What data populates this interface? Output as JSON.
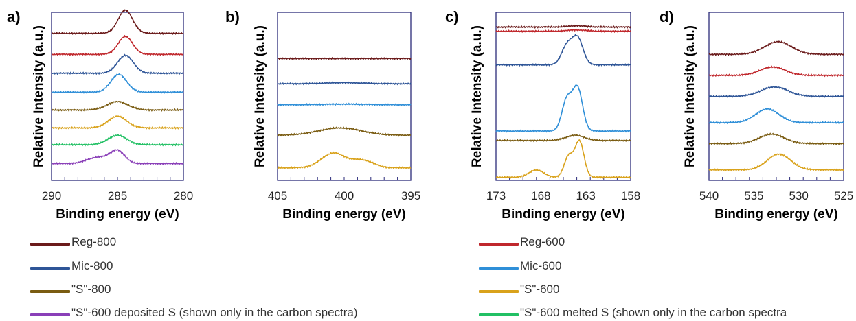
{
  "chart_data": [
    {
      "type": "line",
      "panel_letter": "a)",
      "xlabel": "Binding energy (eV)",
      "ylabel": "Relative Intensity (a.u.)",
      "xlim": [
        290,
        280
      ],
      "x_ticks": [
        290,
        285,
        280
      ],
      "series": [
        {
          "name": "Reg-800",
          "color": "#6b1b1b",
          "baseline": 7.0,
          "peaks": [
            {
              "center": 284.4,
              "height": 1.1,
              "width": 0.55
            }
          ]
        },
        {
          "name": "Reg-600",
          "color": "#c0282d",
          "baseline": 6.0,
          "peaks": [
            {
              "center": 284.4,
              "height": 0.85,
              "width": 0.55
            }
          ]
        },
        {
          "name": "Mic-800",
          "color": "#2e5597",
          "baseline": 5.1,
          "peaks": [
            {
              "center": 284.4,
              "height": 0.85,
              "width": 0.6
            }
          ]
        },
        {
          "name": "Mic-600",
          "color": "#2f8fd8",
          "baseline": 4.2,
          "peaks": [
            {
              "center": 284.9,
              "height": 0.85,
              "width": 0.6
            }
          ]
        },
        {
          "name": "\"S\"-800",
          "color": "#7a5c12",
          "baseline": 3.35,
          "peaks": [
            {
              "center": 285.0,
              "height": 0.4,
              "width": 0.8
            }
          ]
        },
        {
          "name": "\"S\"-600",
          "color": "#d9a21b",
          "baseline": 2.5,
          "peaks": [
            {
              "center": 285.0,
              "height": 0.55,
              "width": 0.7
            }
          ]
        },
        {
          "name": "\"S\"-600 melted S (shown only in the carbon spectra)",
          "color": "#22c064",
          "baseline": 1.7,
          "peaks": [
            {
              "center": 285.0,
              "height": 0.45,
              "width": 0.7
            }
          ]
        },
        {
          "name": "\"S\"-600 deposited S (shown only in the carbon spectra)",
          "color": "#8a3fb8",
          "baseline": 0.8,
          "peaks": [
            {
              "center": 285.0,
              "height": 0.6,
              "width": 0.55
            },
            {
              "center": 286.5,
              "height": 0.3,
              "width": 0.8
            }
          ]
        }
      ]
    },
    {
      "type": "line",
      "panel_letter": "b)",
      "xlabel": "Binding energy (eV)",
      "ylabel": "Relative Intensity (a.u.)",
      "xlim": [
        405,
        395
      ],
      "x_ticks": [
        405,
        400,
        395
      ],
      "series": [
        {
          "name": "Reg-800",
          "color": "#6b1b1b",
          "baseline": 5.8,
          "peaks": []
        },
        {
          "name": "Mic-800",
          "color": "#2e5597",
          "baseline": 4.6,
          "peaks": [
            {
              "center": 400.0,
              "height": 0.05,
              "width": 1.5
            }
          ]
        },
        {
          "name": "Mic-600",
          "color": "#2f8fd8",
          "baseline": 3.6,
          "peaks": [
            {
              "center": 400.0,
              "height": 0.03,
              "width": 1.5
            }
          ]
        },
        {
          "name": "\"S\"-800",
          "color": "#7a5c12",
          "baseline": 2.15,
          "peaks": [
            {
              "center": 400.3,
              "height": 0.35,
              "width": 1.6
            }
          ]
        },
        {
          "name": "\"S\"-600",
          "color": "#d9a21b",
          "baseline": 0.6,
          "peaks": [
            {
              "center": 400.8,
              "height": 0.7,
              "width": 0.9
            },
            {
              "center": 398.6,
              "height": 0.35,
              "width": 0.8
            }
          ]
        }
      ]
    },
    {
      "type": "line",
      "panel_letter": "c)",
      "xlabel": "Binding energy (eV)",
      "ylabel": "Relative Intensity (a.u.)",
      "xlim": [
        173,
        158
      ],
      "x_ticks": [
        173,
        168,
        163,
        158
      ],
      "series": [
        {
          "name": "Reg-800",
          "color": "#6b1b1b",
          "baseline": 7.3,
          "peaks": [
            {
              "center": 164.0,
              "height": 0.06,
              "width": 1.0
            }
          ]
        },
        {
          "name": "Reg-600",
          "color": "#c0282d",
          "baseline": 7.1,
          "peaks": [
            {
              "center": 164.0,
              "height": 0.06,
              "width": 1.0
            }
          ]
        },
        {
          "name": "Mic-800",
          "color": "#2e5597",
          "baseline": 5.5,
          "peaks": [
            {
              "center": 163.9,
              "height": 1.25,
              "width": 0.6
            },
            {
              "center": 165.1,
              "height": 0.9,
              "width": 0.6
            }
          ]
        },
        {
          "name": "Mic-600",
          "color": "#2f8fd8",
          "baseline": 2.35,
          "peaks": [
            {
              "center": 163.9,
              "height": 2.0,
              "width": 0.55
            },
            {
              "center": 165.1,
              "height": 1.5,
              "width": 0.55
            }
          ]
        },
        {
          "name": "\"S\"-800",
          "color": "#7a5c12",
          "baseline": 1.9,
          "peaks": [
            {
              "center": 164.2,
              "height": 0.25,
              "width": 1.0
            }
          ]
        },
        {
          "name": "\"S\"-600",
          "color": "#d9a21b",
          "baseline": 0.15,
          "peaks": [
            {
              "center": 163.7,
              "height": 1.7,
              "width": 0.5
            },
            {
              "center": 164.9,
              "height": 1.0,
              "width": 0.5
            },
            {
              "center": 168.5,
              "height": 0.35,
              "width": 0.8
            }
          ]
        }
      ]
    },
    {
      "type": "line",
      "panel_letter": "d)",
      "xlabel": "Binding energy (eV)",
      "ylabel": "Relative Intensity (a.u.)",
      "xlim": [
        540,
        525
      ],
      "x_ticks": [
        540,
        535,
        530,
        525
      ],
      "series": [
        {
          "name": "Reg-800",
          "color": "#6b1b1b",
          "baseline": 6.0,
          "peaks": [
            {
              "center": 532.3,
              "height": 0.6,
              "width": 1.5
            }
          ]
        },
        {
          "name": "Reg-600",
          "color": "#c0282d",
          "baseline": 5.0,
          "peaks": [
            {
              "center": 532.9,
              "height": 0.4,
              "width": 1.4
            }
          ]
        },
        {
          "name": "Mic-800",
          "color": "#2e5597",
          "baseline": 4.0,
          "peaks": [
            {
              "center": 532.7,
              "height": 0.45,
              "width": 1.5
            }
          ]
        },
        {
          "name": "Mic-600",
          "color": "#2f8fd8",
          "baseline": 2.75,
          "peaks": [
            {
              "center": 533.5,
              "height": 0.65,
              "width": 1.3
            }
          ]
        },
        {
          "name": "\"S\"-800",
          "color": "#7a5c12",
          "baseline": 1.75,
          "peaks": [
            {
              "center": 533.0,
              "height": 0.45,
              "width": 1.4
            }
          ]
        },
        {
          "name": "\"S\"-600",
          "color": "#d9a21b",
          "baseline": 0.5,
          "peaks": [
            {
              "center": 532.2,
              "height": 0.75,
              "width": 1.3
            }
          ]
        }
      ]
    }
  ],
  "legend": {
    "left": [
      {
        "label": "Reg-800",
        "color": "#6b1b1b"
      },
      {
        "label": "Mic-800",
        "color": "#2e5597"
      },
      {
        "label": "\"S\"-800",
        "color": "#7a5c12"
      },
      {
        "label": "\"S\"-600 deposited S (shown only in the carbon spectra)",
        "color": "#8a3fb8"
      }
    ],
    "right": [
      {
        "label": "Reg-600",
        "color": "#c0282d"
      },
      {
        "label": "Mic-600",
        "color": "#2f8fd8"
      },
      {
        "label": "\"S\"-600",
        "color": "#d9a21b"
      },
      {
        "label": "\"S\"-600 melted S (shown only in the carbon spectra",
        "color": "#22c064"
      }
    ]
  }
}
